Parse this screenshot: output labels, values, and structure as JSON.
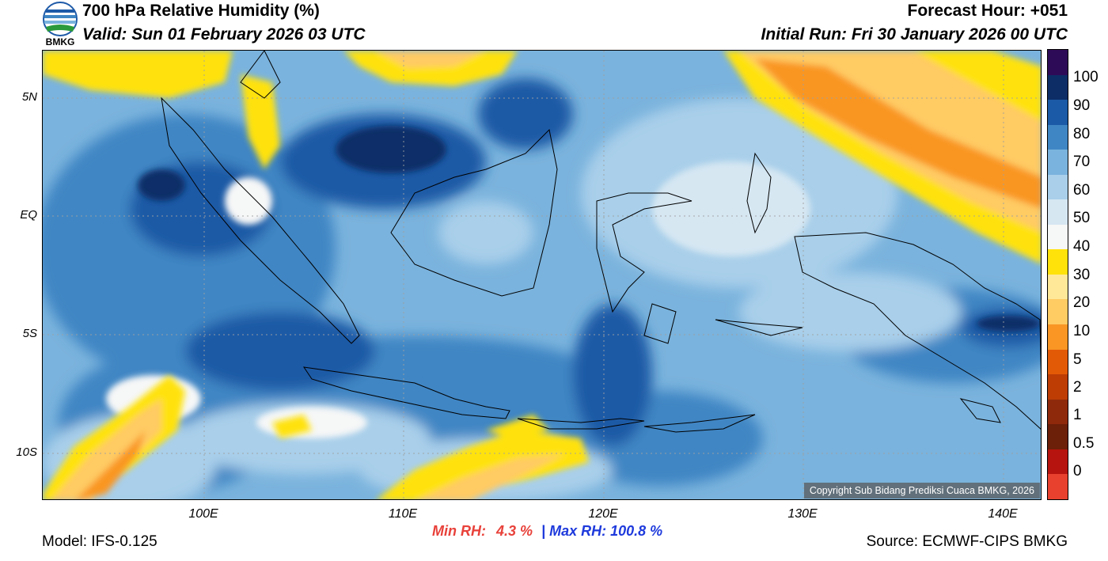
{
  "header": {
    "title": "700 hPa Relative Humidity (%)",
    "valid": "Valid: Sun 01 February 2026 03 UTC",
    "forecast_hour": "Forecast Hour: +051",
    "initial_run": "Initial Run: Fri 30 January 2026 00 UTC",
    "logo_text": "BMKG"
  },
  "map": {
    "lat_labels": [
      "5N",
      "EQ",
      "5S",
      "10S"
    ],
    "lon_labels": [
      "100E",
      "110E",
      "120E",
      "130E",
      "140E"
    ],
    "copyright": "Copyright Sub Bidang Prediksi Cuaca BMKG, 2026"
  },
  "colorbar": {
    "labels": [
      "100",
      "90",
      "80",
      "70",
      "60",
      "50",
      "40",
      "30",
      "20",
      "10",
      "5",
      "2",
      "1",
      "0.5",
      "0"
    ],
    "colors": [
      "#2e0b57",
      "#0d2d67",
      "#1b5aa6",
      "#3f86c4",
      "#7ab3dd",
      "#a9cfea",
      "#d6e7f2",
      "#f6f7f7",
      "#ffe20a",
      "#ffe898",
      "#ffcb63",
      "#f99624",
      "#e35a06",
      "#bd3d05",
      "#8f290b",
      "#6c1f09",
      "#b6140e",
      "#e8412e"
    ]
  },
  "footer": {
    "model": "Model: IFS-0.125",
    "min_rh_label": "Min RH:",
    "min_rh_value": "4.3 %",
    "separator": "|",
    "max_rh": "Max RH: 100.8 %",
    "source": "Source: ECMWF-CIPS BMKG"
  },
  "colors": {
    "min_rh": "#e8413a",
    "max_rh": "#1e3adc"
  }
}
